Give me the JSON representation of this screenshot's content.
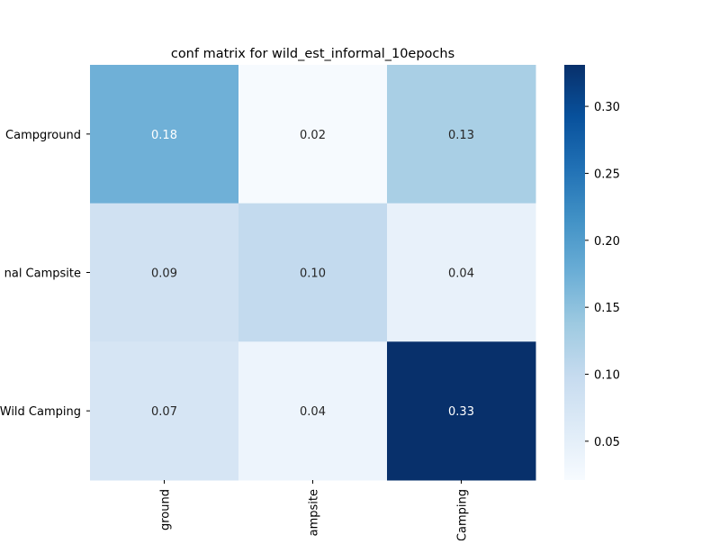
{
  "chart_data": {
    "type": "heatmap",
    "title": "conf matrix for wild_est_informal_10epochs",
    "row_labels": [
      "Campground",
      "nal Campsite",
      "Wild Camping"
    ],
    "col_labels": [
      "ground",
      "ampsite",
      "Camping"
    ],
    "values": [
      [
        0.18,
        0.02,
        0.13
      ],
      [
        0.09,
        0.1,
        0.04
      ],
      [
        0.07,
        0.04,
        0.33
      ]
    ],
    "value_labels": [
      [
        "0.18",
        "0.02",
        "0.13"
      ],
      [
        "0.09",
        "0.10",
        "0.04"
      ],
      [
        "0.07",
        "0.04",
        "0.33"
      ]
    ],
    "cell_colors": [
      [
        "#6fb0d7",
        "#f6fafe",
        "#a9cfe5"
      ],
      [
        "#d0e1f2",
        "#c3daee",
        "#e8f1fa"
      ],
      [
        "#d6e5f4",
        "#edf4fc",
        "#08306b"
      ]
    ],
    "annotation_colors": [
      [
        "#ffffff",
        "#262626",
        "#262626"
      ],
      [
        "#262626",
        "#262626",
        "#262626"
      ],
      [
        "#262626",
        "#262626",
        "#ffffff"
      ]
    ],
    "colorbar": {
      "colormap": "Blues",
      "min": 0.021,
      "max": 0.331,
      "ticks": [
        0.05,
        0.1,
        0.15,
        0.2,
        0.25,
        0.3
      ],
      "tick_labels": [
        "0.05",
        "0.10",
        "0.15",
        "0.20",
        "0.25",
        "0.30"
      ],
      "stops": [
        "#f7fbff",
        "#deebf7",
        "#c6dbef",
        "#9ecae1",
        "#6baed6",
        "#4292c6",
        "#2171b5",
        "#08519c",
        "#08306b"
      ]
    }
  }
}
